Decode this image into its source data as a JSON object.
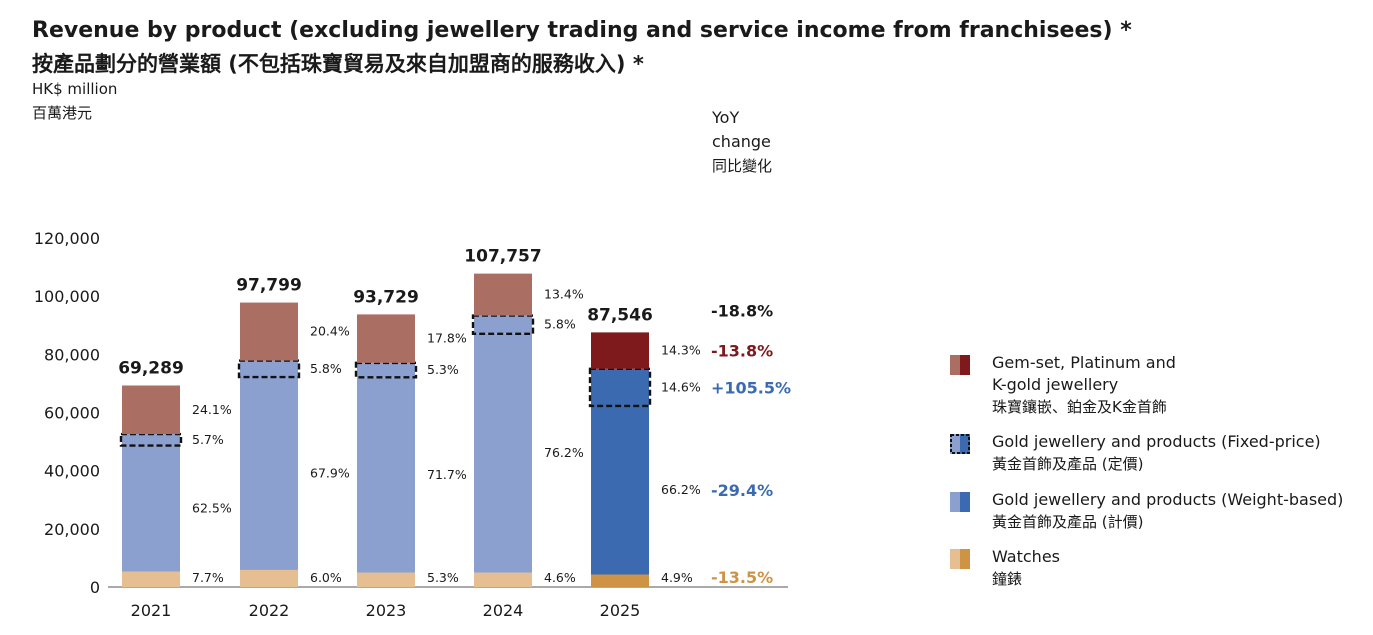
{
  "header": {
    "title_en": "Revenue by product (excluding jewellery trading and service income from franchisees) *",
    "title_zh": "按產品劃分的營業額 (不包括珠寶貿易及來自加盟商的服務收入) *",
    "unit_en": "HK$ million",
    "unit_zh": "百萬港元",
    "yoy_line1": "YoY",
    "yoy_line2": "change",
    "yoy_line3": "同比變化"
  },
  "colors": {
    "gem": "#ab6e62",
    "gem_2025": "#7e1a1c",
    "gold_weight": "#8ca0d0",
    "gold_weight_2025": "#3b6ab0",
    "watches": "#e5bf91",
    "watches_2025": "#cf9346",
    "yoy_total": "#1a1a1a",
    "yoy_gem": "#7e1a1c",
    "yoy_gold": "#3b6ab0",
    "yoy_watches": "#cf9346"
  },
  "chart_data": {
    "type": "bar",
    "stacked": true,
    "categories": [
      "2021",
      "2022",
      "2023",
      "2024",
      "2025"
    ],
    "ylim": [
      0,
      120000
    ],
    "yticks": [
      0,
      20000,
      40000,
      60000,
      80000,
      100000,
      120000
    ],
    "ytick_labels": [
      "0",
      "20,000",
      "40,000",
      "60,000",
      "80,000",
      "100,000",
      "120,000"
    ],
    "totals": [
      69289,
      97799,
      93729,
      107757,
      87546
    ],
    "total_labels": [
      "69,289",
      "97,799",
      "93,729",
      "107,757",
      "87,546"
    ],
    "series": [
      {
        "name": "Watches",
        "share": [
          7.7,
          6.0,
          5.3,
          4.6,
          4.9
        ],
        "labels": [
          "7.7%",
          "6.0%",
          "5.3%",
          "4.6%",
          "4.9%"
        ]
      },
      {
        "name": "Gold jewellery and products (Weight-based)",
        "share": [
          62.5,
          67.9,
          71.7,
          76.2,
          66.2
        ],
        "labels": [
          "62.5%",
          "67.9%",
          "71.7%",
          "76.2%",
          "66.2%"
        ]
      },
      {
        "name": "Gold jewellery and products (Fixed-price)",
        "share": [
          5.7,
          5.8,
          5.3,
          5.8,
          14.6
        ],
        "labels": [
          "5.7%",
          "5.8%",
          "5.3%",
          "5.8%",
          "14.6%"
        ]
      },
      {
        "name": "Gem-set, Platinum and K-gold jewellery",
        "share": [
          24.1,
          20.4,
          17.8,
          13.4,
          14.3
        ],
        "labels": [
          "24.1%",
          "20.4%",
          "17.8%",
          "13.4%",
          "14.3%"
        ]
      }
    ],
    "yoy_change": {
      "total": "-18.8%",
      "gem": "-13.8%",
      "gold_fixed": "+105.5%",
      "gold_weight": "-29.4%",
      "watches": "-13.5%"
    }
  },
  "legend": [
    {
      "key": "gem",
      "en": "Gem-set, Platinum and",
      "en2": "K-gold jewellery",
      "zh": "珠寶鑲嵌、鉑金及K金首飾"
    },
    {
      "key": "fixed",
      "en": "Gold jewellery and products (Fixed-price)",
      "en2": "",
      "zh": "黃金首飾及產品 (定價)"
    },
    {
      "key": "weight",
      "en": "Gold jewellery and products (Weight-based)",
      "en2": "",
      "zh": "黃金首飾及產品 (計價)"
    },
    {
      "key": "watches",
      "en": "Watches",
      "en2": "",
      "zh": "鐘錶"
    }
  ]
}
